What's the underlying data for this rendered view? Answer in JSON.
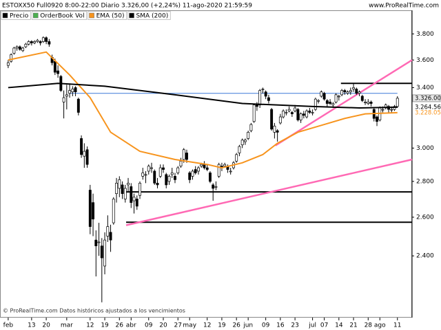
{
  "chart_data": {
    "type": "candlestick",
    "title": "ESTOXX50 Full0920 8:00-22:00 Diario 3.326,00 (+2,24%) 11-ago-2020 21:59:59",
    "source": "www.ProRealTime.com",
    "footnote": "© ProRealTime.com Datos históricos ajustados a los vencimientos",
    "log_scale": true,
    "ylim": [
      2112,
      3990
    ],
    "yticks": [
      {
        "value": 2400,
        "label": "2.400"
      },
      {
        "value": 2600,
        "label": "2.600"
      },
      {
        "value": 2800,
        "label": "2.800"
      },
      {
        "value": 3000,
        "label": "3.000"
      },
      {
        "value": 3400,
        "label": "3.400"
      },
      {
        "value": 3600,
        "label": "3.600"
      },
      {
        "value": 3800,
        "label": "3.800"
      }
    ],
    "xlim": [
      -2.8,
      138
    ],
    "price_flags": [
      {
        "value": 3326,
        "label": "3.326.00",
        "color": "#000000"
      },
      {
        "value": 3264.56,
        "label": "3.264.56",
        "color": "#000000"
      },
      {
        "value": 3228.05,
        "label": "3.228.05",
        "color": "#f7941d"
      }
    ],
    "categories": [
      "feb",
      null,
      null,
      null,
      null,
      null,
      null,
      null,
      "13",
      null,
      null,
      null,
      null,
      "20",
      null,
      null,
      null,
      null,
      null,
      null,
      "mar",
      null,
      null,
      null,
      null,
      null,
      null,
      null,
      "12",
      null,
      null,
      null,
      null,
      "19",
      null,
      null,
      null,
      null,
      "26",
      null,
      null,
      null,
      "abr",
      null,
      null,
      null,
      null,
      null,
      "09",
      null,
      null,
      null,
      null,
      "20",
      null,
      null,
      null,
      null,
      "27",
      null,
      null,
      null,
      "may",
      null,
      null,
      null,
      null,
      null,
      "12",
      null,
      null,
      null,
      null,
      "19",
      null,
      null,
      null,
      null,
      "26",
      null,
      null,
      null,
      "jun",
      null,
      null,
      null,
      null,
      null,
      "09",
      null,
      null,
      null,
      null,
      "16",
      null,
      null,
      null,
      null,
      "23",
      null,
      null,
      null,
      null,
      null,
      "jul",
      null,
      null,
      null,
      "07",
      null,
      null,
      null,
      null,
      "14",
      null,
      null,
      null,
      null,
      "21",
      null,
      null,
      null,
      null,
      "28",
      null,
      null,
      null,
      "ago",
      null,
      null,
      null,
      null,
      null,
      "11"
    ],
    "series": [
      {
        "name": "Precio",
        "color": "#000000",
        "ohlc": [
          [
            3560,
            3600,
            3540,
            3580
          ],
          [
            3590,
            3650,
            3580,
            3640
          ],
          [
            3650,
            3700,
            3640,
            3690
          ],
          [
            3690,
            3710,
            3670,
            3700
          ],
          [
            3700,
            3710,
            3670,
            3680
          ],
          [
            3670,
            3700,
            3660,
            3690
          ],
          [
            3700,
            3730,
            3690,
            3720
          ],
          [
            3720,
            3750,
            3710,
            3740
          ],
          [
            3740,
            3750,
            3710,
            3730
          ],
          [
            3730,
            3750,
            3720,
            3740
          ],
          [
            3740,
            3760,
            3730,
            3750
          ],
          [
            3740,
            3750,
            3710,
            3730
          ],
          [
            3740,
            3780,
            3730,
            3770
          ],
          [
            3770,
            3780,
            3720,
            3740
          ],
          [
            3740,
            3760,
            3700,
            3720
          ],
          [
            3620,
            3640,
            3560,
            3580
          ],
          [
            3590,
            3610,
            3490,
            3510
          ],
          [
            3520,
            3560,
            3470,
            3500
          ],
          [
            3480,
            3490,
            3370,
            3380
          ],
          [
            3300,
            3380,
            3190,
            3330
          ],
          [
            3340,
            3420,
            3250,
            3350
          ],
          [
            3360,
            3430,
            3330,
            3380
          ],
          [
            3370,
            3410,
            3340,
            3390
          ],
          [
            3400,
            3410,
            3340,
            3370
          ],
          [
            3320,
            3330,
            3210,
            3230
          ],
          [
            3060,
            3080,
            2940,
            2960
          ],
          [
            2950,
            3030,
            2880,
            2980
          ],
          [
            2990,
            3010,
            2880,
            2900
          ],
          [
            2750,
            2780,
            2510,
            2550
          ],
          [
            2680,
            2730,
            2500,
            2590
          ],
          [
            2480,
            2530,
            2300,
            2450
          ],
          [
            2470,
            2570,
            2400,
            2470
          ],
          [
            2450,
            2490,
            2180,
            2390
          ],
          [
            2350,
            2520,
            2310,
            2480
          ],
          [
            2500,
            2610,
            2470,
            2550
          ],
          [
            2520,
            2560,
            2420,
            2480
          ],
          [
            2570,
            2710,
            2560,
            2700
          ],
          [
            2730,
            2820,
            2680,
            2790
          ],
          [
            2760,
            2830,
            2710,
            2810
          ],
          [
            2780,
            2800,
            2700,
            2730
          ],
          [
            2700,
            2780,
            2680,
            2760
          ],
          [
            2780,
            2820,
            2740,
            2790
          ],
          [
            2770,
            2790,
            2650,
            2680
          ],
          [
            2690,
            2730,
            2620,
            2710
          ],
          [
            2700,
            2720,
            2640,
            2660
          ],
          [
            2720,
            2800,
            2700,
            2790
          ],
          [
            2830,
            2880,
            2810,
            2850
          ],
          [
            2840,
            2860,
            2790,
            2840
          ],
          [
            2860,
            2900,
            2840,
            2890
          ],
          [
            2880,
            2910,
            2850,
            2880
          ],
          [
            2860,
            2870,
            2780,
            2790
          ],
          [
            2790,
            2820,
            2760,
            2780
          ],
          [
            2830,
            2900,
            2820,
            2880
          ],
          [
            2880,
            2900,
            2850,
            2870
          ],
          [
            2840,
            2850,
            2760,
            2780
          ],
          [
            2800,
            2840,
            2780,
            2830
          ],
          [
            2840,
            2880,
            2820,
            2850
          ],
          [
            2830,
            2850,
            2790,
            2810
          ],
          [
            2850,
            2890,
            2840,
            2880
          ],
          [
            2890,
            2940,
            2880,
            2920
          ],
          [
            2930,
            3000,
            2910,
            2990
          ],
          [
            2970,
            2990,
            2910,
            2930
          ],
          [
            2850,
            2860,
            2790,
            2810
          ],
          [
            2830,
            2870,
            2810,
            2860
          ],
          [
            2870,
            2890,
            2840,
            2850
          ],
          [
            2860,
            2890,
            2840,
            2880
          ],
          [
            2890,
            2910,
            2880,
            2900
          ],
          [
            2900,
            2920,
            2870,
            2880
          ],
          [
            2880,
            2900,
            2860,
            2870
          ],
          [
            2850,
            2860,
            2790,
            2800
          ],
          [
            2780,
            2790,
            2690,
            2760
          ],
          [
            2770,
            2800,
            2750,
            2770
          ],
          [
            2830,
            2910,
            2820,
            2900
          ],
          [
            2890,
            2910,
            2860,
            2880
          ],
          [
            2890,
            2910,
            2880,
            2900
          ],
          [
            2890,
            2900,
            2850,
            2870
          ],
          [
            2860,
            2880,
            2840,
            2860
          ],
          [
            2880,
            2920,
            2870,
            2910
          ],
          [
            2920,
            2970,
            2910,
            2960
          ],
          [
            2970,
            3020,
            2950,
            3010
          ],
          [
            3020,
            3060,
            3000,
            3050
          ],
          [
            3040,
            3060,
            3020,
            3050
          ],
          [
            3060,
            3110,
            3050,
            3100
          ],
          [
            3110,
            3160,
            3100,
            3150
          ],
          [
            3170,
            3290,
            3160,
            3280
          ],
          [
            3280,
            3300,
            3240,
            3270
          ],
          [
            3280,
            3390,
            3260,
            3380
          ],
          [
            3390,
            3400,
            3360,
            3390
          ],
          [
            3370,
            3380,
            3320,
            3340
          ],
          [
            3330,
            3350,
            3290,
            3310
          ],
          [
            3250,
            3260,
            3110,
            3120
          ],
          [
            3100,
            3160,
            3060,
            3140
          ],
          [
            3110,
            3120,
            3040,
            3100
          ],
          [
            3160,
            3220,
            3150,
            3200
          ],
          [
            3200,
            3250,
            3190,
            3240
          ],
          [
            3230,
            3250,
            3210,
            3230
          ],
          [
            3240,
            3270,
            3230,
            3250
          ],
          [
            3230,
            3240,
            3200,
            3220
          ],
          [
            3240,
            3280,
            3230,
            3260
          ],
          [
            3250,
            3260,
            3170,
            3180
          ],
          [
            3180,
            3230,
            3160,
            3220
          ],
          [
            3220,
            3240,
            3190,
            3210
          ],
          [
            3200,
            3250,
            3190,
            3240
          ],
          [
            3240,
            3260,
            3220,
            3230
          ],
          [
            3230,
            3250,
            3210,
            3230
          ],
          [
            3250,
            3330,
            3240,
            3320
          ],
          [
            3310,
            3320,
            3290,
            3310
          ],
          [
            3340,
            3380,
            3330,
            3370
          ],
          [
            3360,
            3370,
            3310,
            3320
          ],
          [
            3310,
            3320,
            3270,
            3290
          ],
          [
            3300,
            3320,
            3280,
            3290
          ],
          [
            3280,
            3300,
            3260,
            3290
          ],
          [
            3300,
            3360,
            3290,
            3350
          ],
          [
            3340,
            3350,
            3310,
            3340
          ],
          [
            3350,
            3390,
            3340,
            3380
          ],
          [
            3380,
            3390,
            3350,
            3370
          ],
          [
            3360,
            3380,
            3350,
            3370
          ],
          [
            3370,
            3400,
            3350,
            3380
          ],
          [
            3390,
            3430,
            3370,
            3400
          ],
          [
            3390,
            3400,
            3350,
            3360
          ],
          [
            3360,
            3380,
            3340,
            3370
          ],
          [
            3340,
            3350,
            3300,
            3310
          ],
          [
            3300,
            3320,
            3280,
            3300
          ],
          [
            3290,
            3320,
            3280,
            3300
          ],
          [
            3300,
            3310,
            3270,
            3290
          ],
          [
            3250,
            3260,
            3170,
            3190
          ],
          [
            3200,
            3210,
            3140,
            3170
          ],
          [
            3180,
            3270,
            3170,
            3260
          ],
          [
            3250,
            3270,
            3230,
            3250
          ],
          [
            3260,
            3290,
            3250,
            3280
          ],
          [
            3270,
            3280,
            3230,
            3250
          ],
          [
            3250,
            3270,
            3230,
            3250
          ],
          [
            3250,
            3280,
            3240,
            3270
          ],
          [
            3270,
            3340,
            3260,
            3326
          ]
        ]
      },
      {
        "name": "OrderBook Vol",
        "color": "#4caf50"
      },
      {
        "name": "EMA (50)",
        "color": "#f7941d",
        "x": [
          0,
          13,
          21,
          28,
          35,
          45,
          57,
          68,
          73,
          80,
          87,
          92,
          99,
          108,
          115,
          122,
          133
        ],
        "values": [
          3600,
          3660,
          3490,
          3330,
          3100,
          2980,
          2930,
          2900,
          2880,
          2910,
          2960,
          3030,
          3100,
          3150,
          3190,
          3220,
          3228
        ]
      },
      {
        "name": "SMA (200)",
        "color": "#000000",
        "x": [
          0,
          17,
          33,
          57,
          80,
          104,
          120,
          133
        ],
        "values": [
          3400,
          3430,
          3410,
          3350,
          3290,
          3270,
          3260,
          3265
        ]
      }
    ],
    "lines": [
      {
        "x": [
          20.7,
          133
        ],
        "values": [
          3360,
          3360
        ],
        "color": "#3a78d8"
      },
      {
        "x": [
          113.7,
          138
        ],
        "values": [
          3430,
          3430
        ],
        "color": "#000000"
      },
      {
        "x": [
          40.3,
          138
        ],
        "values": [
          2740,
          2740
        ],
        "color": "#000000"
      },
      {
        "x": [
          40.3,
          138
        ],
        "values": [
          2573,
          2573
        ],
        "color": "#000000"
      },
      {
        "x": [
          40.3,
          138
        ],
        "values": [
          2557,
          2930
        ],
        "color": "#ff69b4"
      },
      {
        "x": [
          91.3,
          138
        ],
        "values": [
          3016,
          3600
        ],
        "color": "#ff69b4"
      }
    ]
  }
}
